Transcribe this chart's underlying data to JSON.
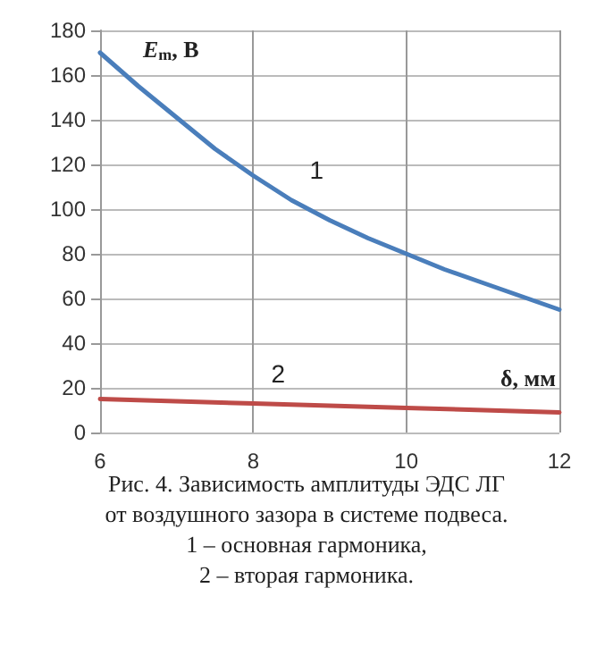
{
  "chart_data": {
    "type": "line",
    "title": "Рис. 4. Зависимость амплитуды ЭДС ЛГ от воздушного зазора в системе подвеса.",
    "annotations": [
      "1 – основная гармоника,",
      "2 – вторая гармоника."
    ],
    "xlabel": "δ, мм",
    "ylabel": "E$_{m}$, В",
    "series": [
      {
        "name": "1",
        "color": "#4a7ebb",
        "x": [
          6,
          6.5,
          7,
          7.5,
          8,
          8.5,
          9,
          9.5,
          10,
          10.5,
          11,
          11.5,
          12
        ],
        "values": [
          170,
          155,
          141,
          127,
          115,
          104,
          95,
          87,
          80,
          73,
          67,
          61,
          55
        ]
      },
      {
        "name": "2",
        "color": "#be4b48",
        "x": [
          6,
          8,
          10,
          12
        ],
        "values": [
          15,
          13,
          11,
          9
        ]
      }
    ],
    "xlim": [
      6,
      12
    ],
    "xticks": [
      6,
      8,
      10,
      12
    ],
    "ylim": [
      0,
      180
    ],
    "yticks": [
      0,
      20,
      40,
      60,
      80,
      100,
      120,
      140,
      160,
      180
    ],
    "grid": true,
    "marker": "none",
    "line_style": "solid",
    "legend": false
  }
}
